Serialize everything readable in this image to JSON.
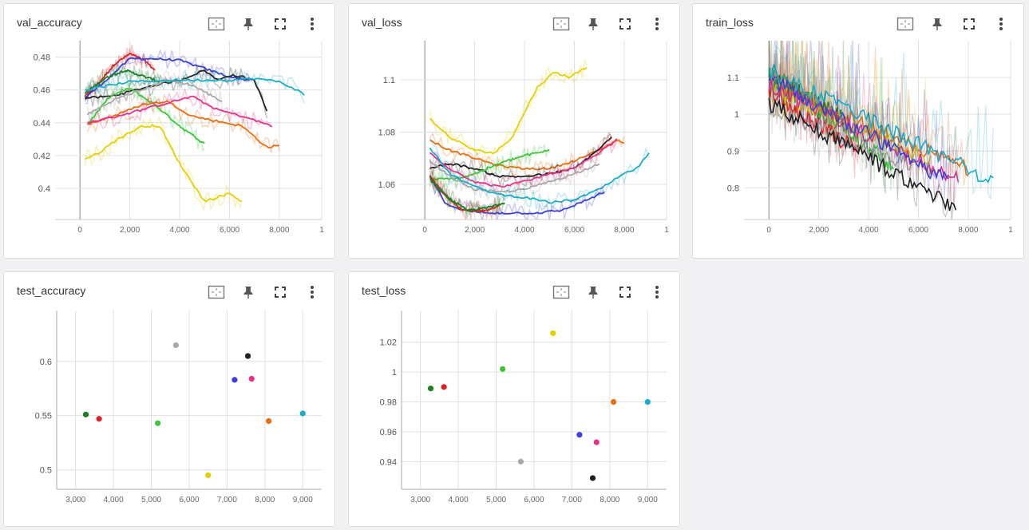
{
  "colors": {
    "darkgreen": "#1e7d1e",
    "red": "#e02020",
    "green": "#3ec43a",
    "gray": "#a8a8a8",
    "yellow": "#e4d000",
    "blue": "#3b3fdc",
    "pink": "#e8308a",
    "black": "#202020",
    "orange": "#ea6d10",
    "cyan": "#19aec8"
  },
  "icons": [
    "fit-domain-icon",
    "pin-icon",
    "fullscreen-icon",
    "more-vert-icon"
  ],
  "chart_data": [
    {
      "id": "val_accuracy",
      "type": "line",
      "title": "val_accuracy",
      "xlim": [
        -1000,
        9700
      ],
      "ylim": [
        0.381,
        0.49
      ],
      "xticks": [
        "0",
        "2,000",
        "4,000",
        "6,000",
        "8,000",
        "1"
      ],
      "xtick_values": [
        0,
        2000,
        4000,
        6000,
        8000,
        9700
      ],
      "yticks": [
        "0.4",
        "0.42",
        "0.44",
        "0.46",
        "0.48"
      ],
      "ytick_values": [
        0.4,
        0.42,
        0.44,
        0.46,
        0.48
      ],
      "series": [
        {
          "color": "red",
          "x": [
            200,
            800,
            1400,
            2000,
            2600,
            3000
          ],
          "y": [
            0.456,
            0.465,
            0.476,
            0.482,
            0.478,
            0.472
          ]
        },
        {
          "color": "blue",
          "x": [
            200,
            1200,
            2000,
            3000,
            4000,
            5000,
            6000,
            6800
          ],
          "y": [
            0.455,
            0.468,
            0.479,
            0.479,
            0.478,
            0.473,
            0.468,
            0.466
          ]
        },
        {
          "color": "black",
          "x": [
            200,
            1200,
            2000,
            3000,
            4000,
            5000,
            5500,
            6000,
            6500,
            7000,
            7500
          ],
          "y": [
            0.455,
            0.456,
            0.459,
            0.463,
            0.466,
            0.472,
            0.466,
            0.469,
            0.468,
            0.466,
            0.447
          ]
        },
        {
          "color": "darkgreen",
          "x": [
            200,
            1000,
            1800,
            2600,
            3200
          ],
          "y": [
            0.458,
            0.467,
            0.472,
            0.468,
            0.465
          ]
        },
        {
          "color": "green",
          "x": [
            300,
            1200,
            2000,
            3000,
            4000,
            5000
          ],
          "y": [
            0.439,
            0.456,
            0.461,
            0.451,
            0.438,
            0.427
          ]
        },
        {
          "color": "orange",
          "x": [
            300,
            1500,
            2500,
            3500,
            4500,
            5500,
            6500,
            7500,
            8000
          ],
          "y": [
            0.439,
            0.445,
            0.451,
            0.453,
            0.444,
            0.441,
            0.438,
            0.425,
            0.426
          ]
        },
        {
          "color": "pink",
          "x": [
            300,
            1500,
            2500,
            3500,
            4500,
            5500,
            6500,
            7700
          ],
          "y": [
            0.44,
            0.444,
            0.448,
            0.452,
            0.456,
            0.448,
            0.444,
            0.438
          ]
        },
        {
          "color": "gray",
          "x": [
            300,
            1500,
            2500,
            3500,
            4500,
            5700
          ],
          "y": [
            0.445,
            0.455,
            0.46,
            0.466,
            0.463,
            0.453
          ]
        },
        {
          "color": "yellow",
          "x": [
            200,
            700,
            1500,
            2500,
            3200,
            4000,
            5000,
            6000,
            6500
          ],
          "y": [
            0.418,
            0.421,
            0.43,
            0.438,
            0.438,
            0.415,
            0.392,
            0.397,
            0.392
          ]
        },
        {
          "color": "cyan",
          "x": [
            200,
            2000,
            4000,
            6000,
            7000,
            8000,
            8700,
            9000
          ],
          "y": [
            0.46,
            0.465,
            0.466,
            0.466,
            0.467,
            0.465,
            0.46,
            0.457
          ]
        }
      ]
    },
    {
      "id": "val_loss",
      "type": "line",
      "title": "val_loss",
      "xlim": [
        -1000,
        9700
      ],
      "ylim": [
        1.0465,
        1.115
      ],
      "xticks": [
        "0",
        "2,000",
        "4,000",
        "6,000",
        "8,000",
        "1"
      ],
      "xtick_values": [
        0,
        2000,
        4000,
        6000,
        8000,
        9700
      ],
      "yticks": [
        "1.06",
        "1.08",
        "1.1"
      ],
      "ytick_values": [
        1.06,
        1.08,
        1.1
      ],
      "series": [
        {
          "color": "yellow",
          "x": [
            200,
            1000,
            2000,
            2800,
            3500,
            4500,
            5200,
            5800,
            6500
          ],
          "y": [
            1.085,
            1.078,
            1.073,
            1.072,
            1.078,
            1.097,
            1.103,
            1.101,
            1.105
          ]
        },
        {
          "color": "orange",
          "x": [
            200,
            1000,
            2000,
            3000,
            4000,
            5000,
            6000,
            7000,
            7700,
            8000
          ],
          "y": [
            1.077,
            1.073,
            1.07,
            1.067,
            1.066,
            1.066,
            1.069,
            1.073,
            1.077,
            1.076
          ]
        },
        {
          "color": "black",
          "x": [
            200,
            1000,
            2000,
            3000,
            4000,
            5000,
            6000,
            6800,
            7500
          ],
          "y": [
            1.066,
            1.068,
            1.066,
            1.063,
            1.063,
            1.064,
            1.066,
            1.072,
            1.078
          ]
        },
        {
          "color": "green",
          "x": [
            300,
            1200,
            2000,
            3000,
            4000,
            5000
          ],
          "y": [
            1.062,
            1.062,
            1.064,
            1.068,
            1.071,
            1.073
          ]
        },
        {
          "color": "pink",
          "x": [
            200,
            1000,
            2000,
            3000,
            4000,
            5000,
            6000,
            7000,
            7700
          ],
          "y": [
            1.072,
            1.066,
            1.061,
            1.059,
            1.061,
            1.064,
            1.066,
            1.072,
            1.077
          ]
        },
        {
          "color": "gray",
          "x": [
            200,
            1000,
            2000,
            3000,
            4000,
            5000,
            6000,
            7000
          ],
          "y": [
            1.069,
            1.063,
            1.058,
            1.057,
            1.058,
            1.061,
            1.064,
            1.068
          ]
        },
        {
          "color": "cyan",
          "x": [
            200,
            1000,
            2000,
            3000,
            4000,
            5000,
            6000,
            7000,
            8000,
            8500,
            9000
          ],
          "y": [
            1.074,
            1.064,
            1.059,
            1.056,
            1.055,
            1.053,
            1.054,
            1.058,
            1.064,
            1.066,
            1.072
          ]
        },
        {
          "color": "blue",
          "x": [
            200,
            800,
            1500,
            2500,
            3500,
            4500,
            5500,
            6500,
            7200
          ],
          "y": [
            1.063,
            1.053,
            1.05,
            1.049,
            1.049,
            1.049,
            1.05,
            1.054,
            1.057
          ]
        },
        {
          "color": "red",
          "x": [
            200,
            800,
            1500,
            2500,
            3000
          ],
          "y": [
            1.063,
            1.056,
            1.05,
            1.05,
            1.052
          ]
        },
        {
          "color": "darkgreen",
          "x": [
            200,
            900,
            1700,
            2500,
            3200
          ],
          "y": [
            1.062,
            1.055,
            1.05,
            1.051,
            1.053
          ]
        }
      ]
    },
    {
      "id": "train_loss",
      "type": "line",
      "title": "train_loss",
      "xlim": [
        -1000,
        9700
      ],
      "ylim": [
        0.714,
        1.2
      ],
      "xticks": [
        "0",
        "2,000",
        "4,000",
        "6,000",
        "8,000",
        "1"
      ],
      "xtick_values": [
        0,
        2000,
        4000,
        6000,
        8000,
        9700
      ],
      "yticks": [
        "0.8",
        "0.9",
        "1",
        "1.1"
      ],
      "ytick_values": [
        0.8,
        0.9,
        1.0,
        1.1
      ],
      "series": [
        {
          "color": "green",
          "start": 1.1,
          "end": 0.86,
          "x_end": 5000
        },
        {
          "color": "darkgreen",
          "start": 1.11,
          "end": 0.98,
          "x_end": 3200
        },
        {
          "color": "red",
          "start": 1.06,
          "end": 0.9,
          "x_end": 3600
        },
        {
          "color": "orange",
          "start": 1.08,
          "end": 0.85,
          "x_end": 8000
        },
        {
          "color": "gray",
          "start": 1.02,
          "end": 0.86,
          "x_end": 5700
        },
        {
          "color": "yellow",
          "start": 1.07,
          "end": 0.88,
          "x_end": 6500
        },
        {
          "color": "pink",
          "start": 1.08,
          "end": 0.82,
          "x_end": 7600
        },
        {
          "color": "blue",
          "start": 1.1,
          "end": 0.82,
          "x_end": 7200
        },
        {
          "color": "cyan",
          "start": 1.12,
          "end": 0.82,
          "x_end": 9000
        },
        {
          "color": "black",
          "start": 1.03,
          "end": 0.75,
          "x_end": 7500
        }
      ]
    },
    {
      "id": "test_accuracy",
      "type": "scatter",
      "title": "test_accuracy",
      "xlim": [
        2500,
        9500
      ],
      "ylim": [
        0.482,
        0.647
      ],
      "xticks": [
        "3,000",
        "4,000",
        "5,000",
        "6,000",
        "7,000",
        "8,000",
        "9,000"
      ],
      "xtick_values": [
        3000,
        4000,
        5000,
        6000,
        7000,
        8000,
        9000
      ],
      "yticks": [
        "0.5",
        "0.55",
        "0.6"
      ],
      "ytick_values": [
        0.5,
        0.55,
        0.6
      ],
      "points": [
        {
          "color": "darkgreen",
          "x": 3270,
          "y": 0.551
        },
        {
          "color": "red",
          "x": 3620,
          "y": 0.547
        },
        {
          "color": "green",
          "x": 5170,
          "y": 0.543
        },
        {
          "color": "gray",
          "x": 5650,
          "y": 0.615
        },
        {
          "color": "yellow",
          "x": 6500,
          "y": 0.495
        },
        {
          "color": "blue",
          "x": 7200,
          "y": 0.583
        },
        {
          "color": "black",
          "x": 7550,
          "y": 0.605
        },
        {
          "color": "pink",
          "x": 7650,
          "y": 0.584
        },
        {
          "color": "orange",
          "x": 8100,
          "y": 0.545
        },
        {
          "color": "cyan",
          "x": 9000,
          "y": 0.552
        }
      ]
    },
    {
      "id": "test_loss",
      "type": "scatter",
      "title": "test_loss",
      "xlim": [
        2500,
        9500
      ],
      "ylim": [
        0.9215,
        1.0412
      ],
      "xticks": [
        "3,000",
        "4,000",
        "5,000",
        "6,000",
        "7,000",
        "8,000",
        "9,000"
      ],
      "xtick_values": [
        3000,
        4000,
        5000,
        6000,
        7000,
        8000,
        9000
      ],
      "yticks": [
        "0.94",
        "0.96",
        "0.98",
        "1",
        "1.02"
      ],
      "ytick_values": [
        0.94,
        0.96,
        0.98,
        1.0,
        1.02
      ],
      "points": [
        {
          "color": "darkgreen",
          "x": 3270,
          "y": 0.989
        },
        {
          "color": "red",
          "x": 3620,
          "y": 0.99
        },
        {
          "color": "green",
          "x": 5170,
          "y": 1.002
        },
        {
          "color": "gray",
          "x": 5650,
          "y": 0.94
        },
        {
          "color": "yellow",
          "x": 6500,
          "y": 1.026
        },
        {
          "color": "blue",
          "x": 7200,
          "y": 0.958
        },
        {
          "color": "black",
          "x": 7550,
          "y": 0.929
        },
        {
          "color": "pink",
          "x": 7650,
          "y": 0.953
        },
        {
          "color": "orange",
          "x": 8100,
          "y": 0.98
        },
        {
          "color": "cyan",
          "x": 9000,
          "y": 0.98
        }
      ]
    }
  ]
}
